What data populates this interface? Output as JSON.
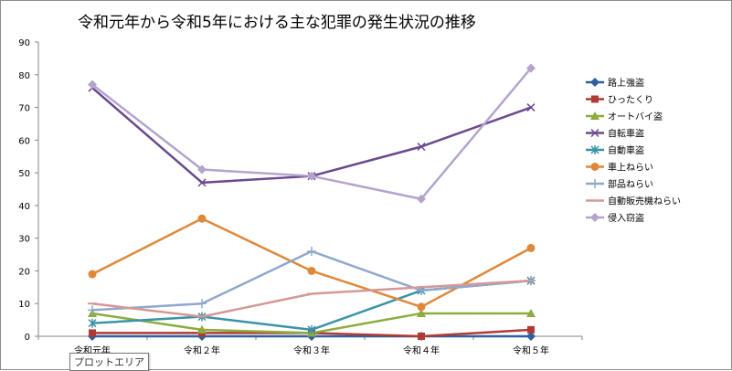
{
  "chart_data": {
    "type": "line",
    "title": "令和元年から令和5年における主な犯罪の発生状況の推移",
    "xlabel": "",
    "ylabel": "",
    "categories": [
      "令和元年",
      "令和２年",
      "令和３年",
      "令和４年",
      "令和５年"
    ],
    "ylim": [
      0,
      90
    ],
    "yticks": [
      0,
      10,
      20,
      30,
      40,
      50,
      60,
      70,
      80,
      90
    ],
    "grid": false,
    "legend": "right",
    "series": [
      {
        "name": "路上強盗",
        "values": [
          0,
          0,
          0,
          0,
          0
        ],
        "color": "#2e5f9e",
        "marker": "diamond"
      },
      {
        "name": "ひったくり",
        "values": [
          1,
          1,
          1,
          0,
          2
        ],
        "color": "#b03a34",
        "marker": "square"
      },
      {
        "name": "オートバイ盗",
        "values": [
          7,
          2,
          1,
          7,
          7
        ],
        "color": "#8cac3c",
        "marker": "triangle"
      },
      {
        "name": "自転車盗",
        "values": [
          76,
          47,
          49,
          58,
          70
        ],
        "color": "#6a4a8c",
        "marker": "x"
      },
      {
        "name": "自動車盗",
        "values": [
          4,
          6,
          2,
          14,
          17
        ],
        "color": "#3a93a8",
        "marker": "asterisk"
      },
      {
        "name": "車上ねらい",
        "values": [
          19,
          36,
          20,
          9,
          27
        ],
        "color": "#e0883a",
        "marker": "circle"
      },
      {
        "name": "部品ねらい",
        "values": [
          8,
          10,
          26,
          14,
          17
        ],
        "color": "#90a8cc",
        "marker": "plus"
      },
      {
        "name": "自動販売機ねらい",
        "values": [
          10,
          6,
          13,
          15,
          17
        ],
        "color": "#d49898",
        "marker": "dash"
      },
      {
        "name": "侵入窃盗",
        "values": [
          77,
          51,
          49,
          42,
          82
        ],
        "color": "#b4a4cc",
        "marker": "diamond"
      }
    ]
  },
  "tooltip": {
    "text": "プロットエリア"
  }
}
